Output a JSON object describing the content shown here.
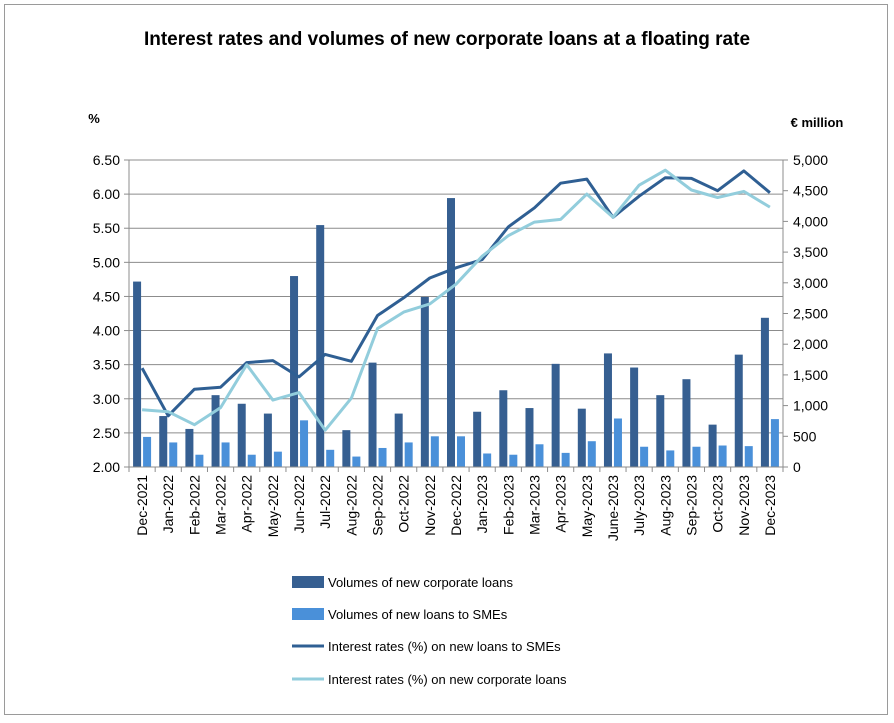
{
  "chart_data": {
    "type": "bar",
    "title": "Interest rates and volumes of new corporate loans at a floating rate",
    "y_left_label": "%",
    "y_right_label": "€ million",
    "y_left_range": [
      2.0,
      6.5
    ],
    "y_right_range": [
      0,
      5000
    ],
    "y_left_ticks": [
      "6.50",
      "6.00",
      "5.50",
      "5.00",
      "4.50",
      "4.00",
      "3.50",
      "3.00",
      "2.50",
      "2.00"
    ],
    "y_right_ticks": [
      "5,000",
      "4,500",
      "4,000",
      "3,500",
      "3,000",
      "2,500",
      "2,000",
      "1,500",
      "1,000",
      "500",
      "0"
    ],
    "grid": "horizontal",
    "legend_position": "bottom",
    "categories": [
      "Dec-2021",
      "Jan-2022",
      "Feb-2022",
      "Mar-2022",
      "Apr-2022",
      "May-2022",
      "Jun-2022",
      "Jul-2022",
      "Aug-2022",
      "Sep-2022",
      "Oct-2022",
      "Nov-2022",
      "Dec-2022",
      "Jan-2023",
      "Feb-2023",
      "Mar-2023",
      "Apr-2023",
      "May-2023",
      "June-2023",
      "July-2023",
      "Aug-2023",
      "Sep-2023",
      "Oct-2023",
      "Nov-2023",
      "Dec-2023"
    ],
    "series": [
      {
        "name": "Volumes of new corporate loans",
        "kind": "bar",
        "axis": "right",
        "color": "#365f91",
        "values": [
          3020,
          830,
          620,
          1170,
          1030,
          870,
          3110,
          3940,
          600,
          1700,
          870,
          2770,
          4380,
          900,
          1250,
          960,
          1680,
          950,
          1850,
          1620,
          1170,
          1430,
          690,
          1830,
          2430
        ]
      },
      {
        "name": "Volumes of new loans to SMEs",
        "kind": "bar",
        "axis": "right",
        "color": "#4a90d9",
        "values": [
          490,
          400,
          200,
          400,
          200,
          250,
          760,
          280,
          170,
          310,
          400,
          500,
          500,
          220,
          200,
          370,
          230,
          420,
          790,
          330,
          270,
          330,
          350,
          340,
          780
        ]
      },
      {
        "name": "Interest rates (%) on new loans to SMEs",
        "kind": "line",
        "axis": "left",
        "color": "#2f5f93",
        "values": [
          3.45,
          2.75,
          3.14,
          3.17,
          3.53,
          3.56,
          3.32,
          3.65,
          3.55,
          4.22,
          4.48,
          4.77,
          4.92,
          5.04,
          5.52,
          5.8,
          6.16,
          6.22,
          5.66,
          5.97,
          6.24,
          6.23,
          6.05,
          6.34,
          6.02
        ]
      },
      {
        "name": "Interest rates (%) on new corporate loans",
        "kind": "line",
        "axis": "left",
        "color": "#92cddc",
        "values": [
          2.84,
          2.81,
          2.62,
          2.87,
          3.5,
          2.98,
          3.09,
          2.54,
          3.01,
          4.03,
          4.27,
          4.39,
          4.68,
          5.09,
          5.39,
          5.59,
          5.63,
          6.0,
          5.66,
          6.13,
          6.35,
          6.06,
          5.95,
          6.04,
          5.81
        ]
      }
    ]
  }
}
